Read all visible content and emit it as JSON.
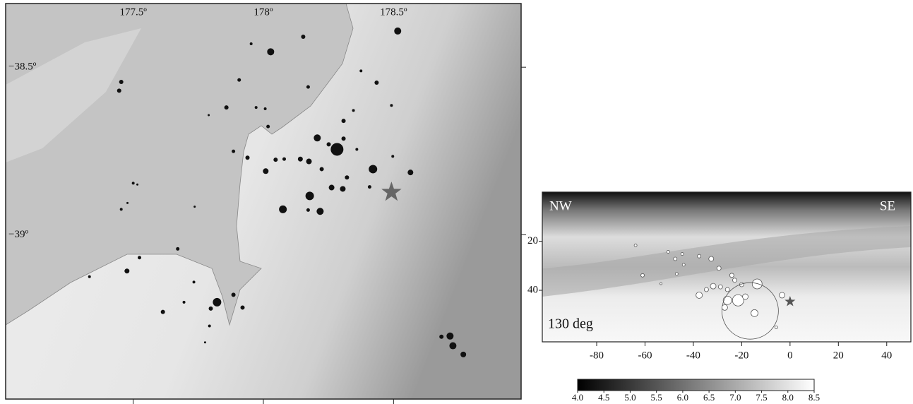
{
  "map": {
    "xlim": [
      177.01,
      178.99
    ],
    "ylim": [
      -39.49,
      -38.31
    ],
    "xticks": [
      {
        "value": 177.5,
        "label": "177.5º"
      },
      {
        "value": 178,
        "label": "178º"
      },
      {
        "value": 178.5,
        "label": "178.5º"
      }
    ],
    "yticks": [
      {
        "value": -38.5,
        "label": "−38.5º"
      },
      {
        "value": -39,
        "label": "−39º"
      }
    ],
    "events": {
      "lon": [
        178.516,
        178.028,
        178.153,
        177.953,
        177.454,
        177.446,
        177.907,
        178.172,
        178.375,
        178.435,
        177.858,
        177.972,
        178.007,
        177.79,
        178.308,
        178.346,
        178.492,
        178.018,
        178.283,
        178.207,
        178.251,
        178.308,
        178.175,
        178.142,
        178.224,
        178.359,
        178.421,
        178.565,
        178.497,
        178.009,
        178.047,
        178.08,
        177.885,
        177.939,
        178.178,
        178.262,
        178.305,
        178.321,
        178.218,
        178.075,
        178.172,
        178.408,
        177.5,
        177.516,
        177.454,
        177.478,
        177.736,
        177.671,
        177.524,
        177.476,
        177.332,
        177.733,
        177.614,
        177.695,
        177.822,
        177.885,
        177.92,
        177.798,
        177.793,
        177.776,
        178.717,
        178.728,
        178.768,
        178.684
      ],
      "lat": [
        -38.392,
        -38.454,
        -38.409,
        -38.43,
        -38.544,
        -38.57,
        -38.538,
        -38.559,
        -38.511,
        -38.546,
        -38.62,
        -38.62,
        -38.624,
        -38.643,
        -38.66,
        -38.629,
        -38.614,
        -38.677,
        -38.745,
        -38.711,
        -38.73,
        -38.713,
        -38.781,
        -38.774,
        -38.804,
        -38.745,
        -38.804,
        -38.814,
        -38.766,
        -38.81,
        -38.776,
        -38.774,
        -38.751,
        -38.77,
        -38.884,
        -38.859,
        -38.863,
        -38.829,
        -38.93,
        -38.924,
        -38.926,
        -38.857,
        -38.846,
        -38.85,
        -38.924,
        -38.905,
        -38.916,
        -39.042,
        -39.068,
        -39.108,
        -39.125,
        -39.141,
        -39.23,
        -39.201,
        -39.201,
        -39.179,
        -39.217,
        -39.22,
        -39.272,
        -39.321,
        -39.302,
        -39.331,
        -39.357,
        -39.304
      ],
      "size": [
        5,
        5,
        3,
        2,
        3,
        3,
        2.5,
        2.5,
        2,
        3,
        3,
        2,
        2,
        1.5,
        3,
        2,
        2,
        2.5,
        9,
        5,
        3,
        3,
        4,
        3.5,
        3,
        2,
        6,
        4,
        2,
        4,
        3,
        2.5,
        2.5,
        3,
        6,
        4,
        4,
        3,
        5,
        5.5,
        2.5,
        2.5,
        2,
        1.5,
        2,
        1.5,
        1.5,
        2.5,
        2.5,
        3.5,
        2,
        2,
        3,
        2,
        6,
        3,
        3,
        3,
        2,
        1.5,
        5,
        5,
        4,
        3
      ]
    },
    "mainshock": {
      "lon": 178.492,
      "lat": -38.873
    }
  },
  "section": {
    "left_label": "NW",
    "right_label": "SE",
    "azimuth_label": "130 deg",
    "xlim": [
      -102.5,
      50
    ],
    "ylim": [
      61,
      0
    ],
    "xticks": [
      -80,
      -60,
      -40,
      -20,
      0,
      20,
      40
    ],
    "yticks": [
      20,
      40
    ],
    "events": {
      "distance": [
        -63.9,
        -61.0,
        -50.4,
        -47.5,
        -44.6,
        -44.0,
        -46.9,
        -37.6,
        -32.6,
        -29.4,
        -31.8,
        -37.6,
        -34.6,
        -28.8,
        -25.9,
        -24.1,
        -21.5,
        -25.9,
        -18.5,
        -13.6,
        -20.0,
        -14.7,
        -3.3,
        -5.7,
        -16.5,
        -53.4,
        -22.9,
        -27.0
      ],
      "depth": [
        21.7,
        33.9,
        24.3,
        27.2,
        25.2,
        29.6,
        33.3,
        26.1,
        27.2,
        31.0,
        38.3,
        42.0,
        39.7,
        38.6,
        39.7,
        33.9,
        44.1,
        44.1,
        42.6,
        37.4,
        37.7,
        49.3,
        42.0,
        55.1,
        48.4,
        37.3,
        35.9,
        47.0
      ],
      "size": [
        2,
        2.5,
        2,
        2.5,
        2,
        2,
        2,
        2.5,
        3.5,
        3,
        4,
        4.5,
        3,
        3,
        3,
        3,
        8,
        6,
        4,
        7,
        3,
        5,
        4,
        2,
        40,
        1.5,
        3,
        4
      ]
    },
    "mainshock": {
      "distance": 0,
      "depth": 44.6
    }
  },
  "colorbar": {
    "lim": [
      4,
      8.5
    ],
    "ticks": [
      {
        "value": 4,
        "label": "4.0"
      },
      {
        "value": 4.5,
        "label": "4.5"
      },
      {
        "value": 5,
        "label": "5.0"
      },
      {
        "value": 5.5,
        "label": "5.5"
      },
      {
        "value": 6,
        "label": "6.0"
      },
      {
        "value": 6.5,
        "label": "6.5"
      },
      {
        "value": 7,
        "label": "7.0"
      },
      {
        "value": 7.5,
        "label": "7.5"
      },
      {
        "value": 8,
        "label": "8.0"
      },
      {
        "value": 8.5,
        "label": "8.5"
      }
    ]
  }
}
